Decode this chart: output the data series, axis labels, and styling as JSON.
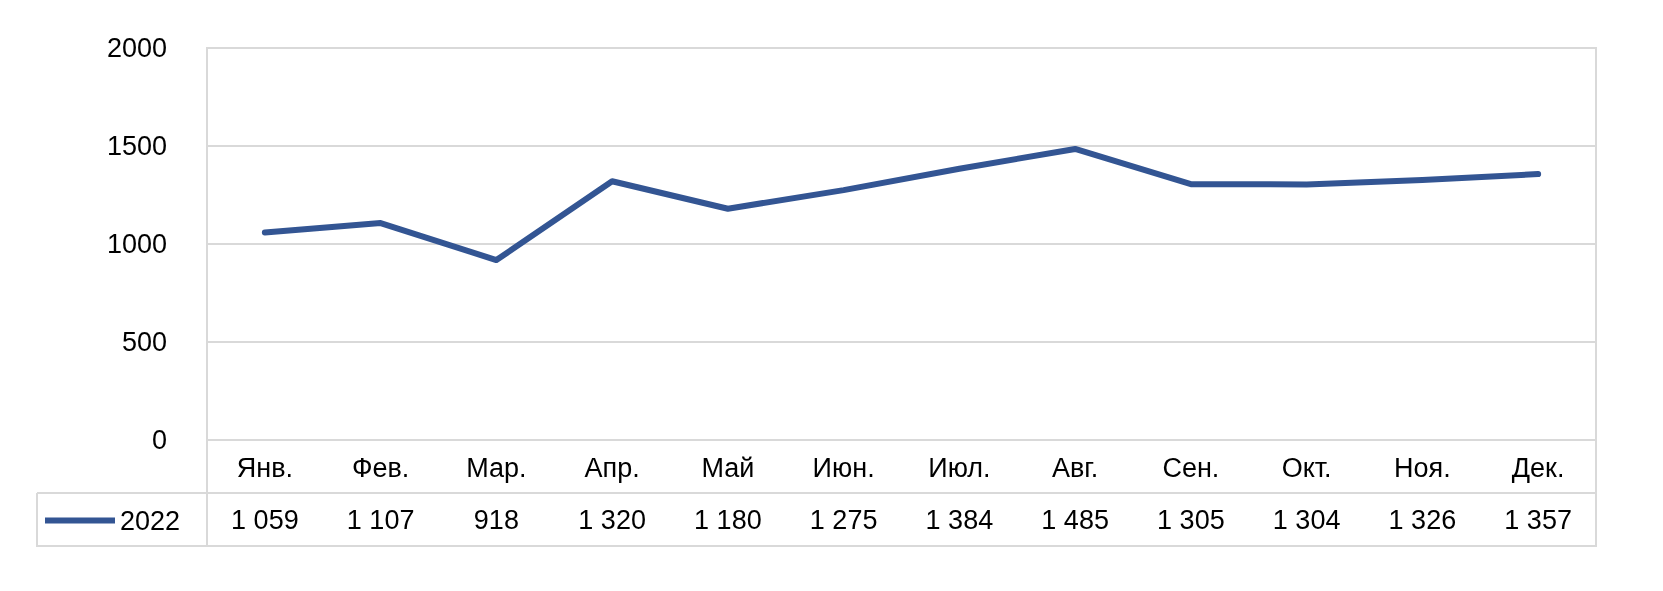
{
  "chart_data": {
    "type": "line",
    "categories": [
      "Янв.",
      "Фев.",
      "Мар.",
      "Апр.",
      "Май",
      "Июн.",
      "Июл.",
      "Авг.",
      "Сен.",
      "Окт.",
      "Ноя.",
      "Дек."
    ],
    "series": [
      {
        "name": "2022",
        "color": "#335593",
        "values": [
          1059,
          1107,
          918,
          1320,
          1180,
          1275,
          1384,
          1485,
          1305,
          1304,
          1326,
          1357
        ],
        "value_labels": [
          "1 059",
          "1 107",
          "918",
          "1 320",
          "1 180",
          "1 275",
          "1 384",
          "1 485",
          "1 305",
          "1 304",
          "1 326",
          "1 357"
        ]
      }
    ],
    "ylim": [
      0,
      2000
    ],
    "yticks": [
      0,
      500,
      1000,
      1500,
      2000
    ],
    "grid": "y",
    "legend": "bottom left",
    "marker": "none",
    "line_style": "solid"
  }
}
